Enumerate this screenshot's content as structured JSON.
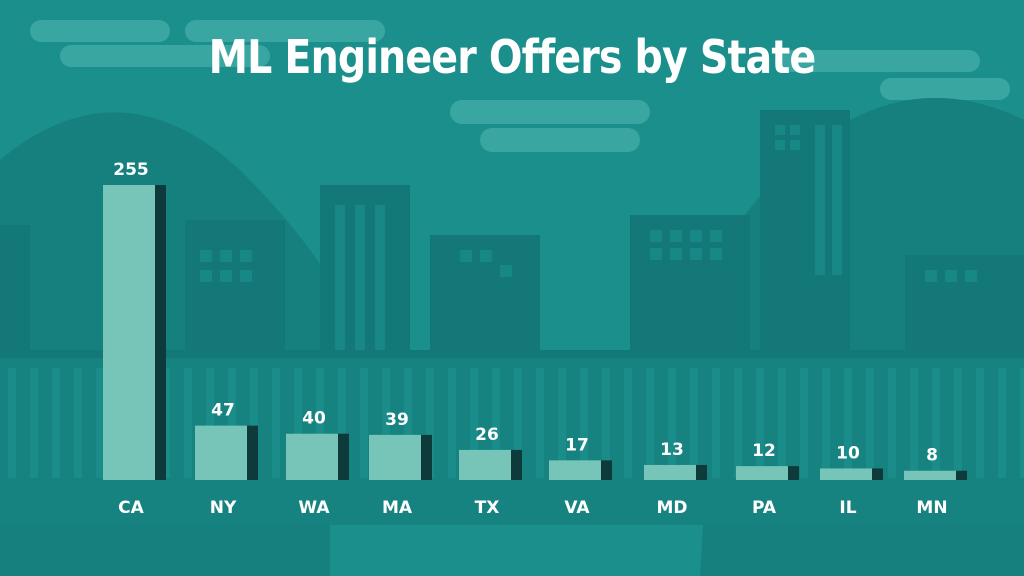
{
  "colors": {
    "background": "#1b8f8c",
    "bar_face": "#76c5b8",
    "bar_shadow": "#0f3a3b",
    "text": "#ffffff"
  },
  "chart_data": {
    "type": "bar",
    "title": "ML Engineer Offers by State",
    "xlabel": "",
    "ylabel": "",
    "categories": [
      "CA",
      "NY",
      "WA",
      "MA",
      "TX",
      "VA",
      "MD",
      "PA",
      "IL",
      "MN"
    ],
    "values": [
      255,
      47,
      40,
      39,
      26,
      17,
      13,
      12,
      10,
      8
    ],
    "ylim": [
      0,
      255
    ],
    "grid": false,
    "legend": "none"
  }
}
